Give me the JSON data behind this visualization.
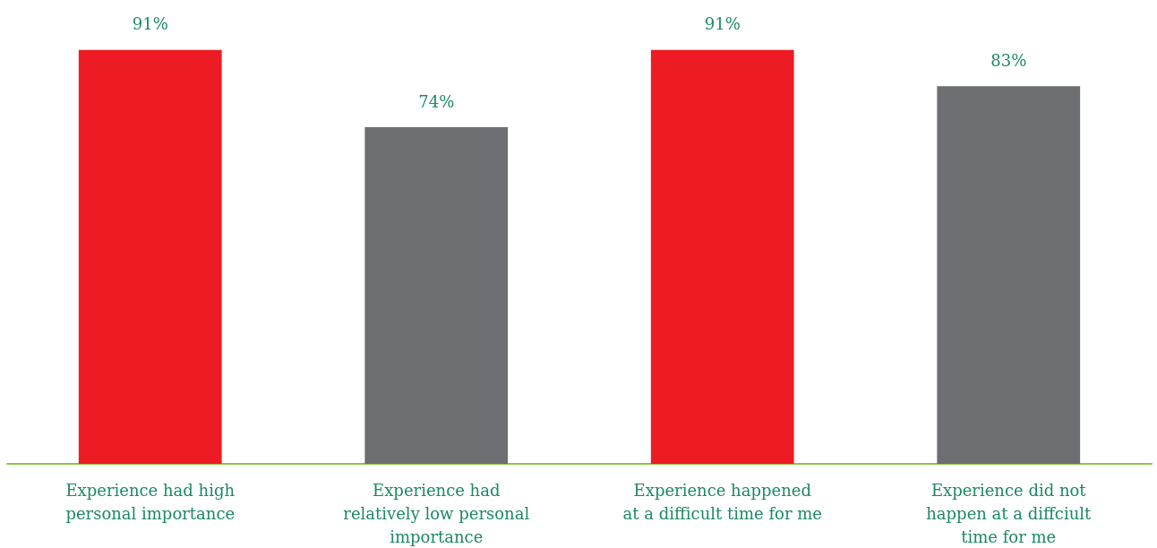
{
  "chart_data": {
    "type": "bar",
    "categories": [
      "Experience had high\npersonal importance",
      "Experience had\nrelatively low personal\nimportance",
      "Experience happened\nat a difficult time for me",
      "Experience did not\nhappen at a diffciult\ntime for me"
    ],
    "values": [
      91,
      74,
      91,
      83
    ],
    "colors": [
      "#ed1c24",
      "#6d6e71",
      "#ed1c24",
      "#6d6e71"
    ],
    "value_labels": [
      "91%",
      "74%",
      "91%",
      "83%"
    ],
    "tick_labels": "x"
  }
}
